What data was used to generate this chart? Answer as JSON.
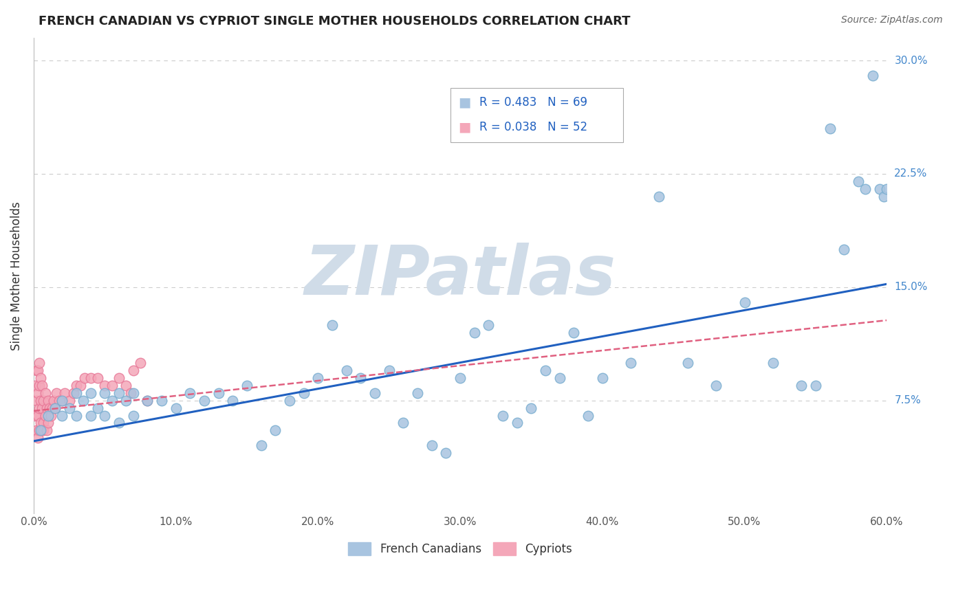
{
  "title": "FRENCH CANADIAN VS CYPRIOT SINGLE MOTHER HOUSEHOLDS CORRELATION CHART",
  "source": "Source: ZipAtlas.com",
  "xlabel": "",
  "ylabel": "Single Mother Households",
  "xlim": [
    0.0,
    0.6
  ],
  "ylim": [
    0.0,
    0.315
  ],
  "xtick_labels": [
    "0.0%",
    "10.0%",
    "20.0%",
    "30.0%",
    "40.0%",
    "50.0%",
    "60.0%"
  ],
  "xtick_vals": [
    0.0,
    0.1,
    0.2,
    0.3,
    0.4,
    0.5,
    0.6
  ],
  "ytick_labels": [
    "7.5%",
    "15.0%",
    "22.5%",
    "30.0%"
  ],
  "ytick_vals": [
    0.075,
    0.15,
    0.225,
    0.3
  ],
  "legend_R_blue": "R = 0.483",
  "legend_N_blue": "N = 69",
  "legend_R_pink": "R = 0.038",
  "legend_N_pink": "N = 52",
  "legend_label_blue": "French Canadians",
  "legend_label_pink": "Cypriots",
  "dot_color_blue": "#a8c4e0",
  "dot_color_pink": "#f4a7b9",
  "dot_edge_blue": "#7aaed0",
  "dot_edge_pink": "#e87a99",
  "line_color_blue": "#2060c0",
  "line_color_pink": "#e06080",
  "watermark": "ZIPatlas",
  "watermark_color": "#d0dce8",
  "blue_x": [
    0.005,
    0.01,
    0.015,
    0.02,
    0.02,
    0.025,
    0.03,
    0.03,
    0.035,
    0.04,
    0.04,
    0.045,
    0.05,
    0.05,
    0.055,
    0.06,
    0.06,
    0.065,
    0.07,
    0.07,
    0.08,
    0.09,
    0.1,
    0.11,
    0.12,
    0.13,
    0.14,
    0.15,
    0.16,
    0.17,
    0.18,
    0.19,
    0.2,
    0.21,
    0.22,
    0.23,
    0.24,
    0.25,
    0.26,
    0.27,
    0.28,
    0.29,
    0.3,
    0.31,
    0.32,
    0.33,
    0.34,
    0.35,
    0.36,
    0.37,
    0.38,
    0.39,
    0.4,
    0.42,
    0.44,
    0.46,
    0.48,
    0.5,
    0.52,
    0.54,
    0.55,
    0.56,
    0.57,
    0.58,
    0.585,
    0.59,
    0.595,
    0.598,
    0.6
  ],
  "blue_y": [
    0.055,
    0.065,
    0.07,
    0.065,
    0.075,
    0.07,
    0.065,
    0.08,
    0.075,
    0.065,
    0.08,
    0.07,
    0.065,
    0.08,
    0.075,
    0.06,
    0.08,
    0.075,
    0.065,
    0.08,
    0.075,
    0.075,
    0.07,
    0.08,
    0.075,
    0.08,
    0.075,
    0.085,
    0.045,
    0.055,
    0.075,
    0.08,
    0.09,
    0.125,
    0.095,
    0.09,
    0.08,
    0.095,
    0.06,
    0.08,
    0.045,
    0.04,
    0.09,
    0.12,
    0.125,
    0.065,
    0.06,
    0.07,
    0.095,
    0.09,
    0.12,
    0.065,
    0.09,
    0.1,
    0.21,
    0.1,
    0.085,
    0.14,
    0.1,
    0.085,
    0.085,
    0.255,
    0.175,
    0.22,
    0.215,
    0.29,
    0.215,
    0.21,
    0.215
  ],
  "pink_x": [
    0.001,
    0.001,
    0.002,
    0.002,
    0.002,
    0.003,
    0.003,
    0.003,
    0.003,
    0.004,
    0.004,
    0.004,
    0.004,
    0.005,
    0.005,
    0.005,
    0.006,
    0.006,
    0.006,
    0.007,
    0.007,
    0.007,
    0.008,
    0.008,
    0.009,
    0.009,
    0.01,
    0.01,
    0.011,
    0.012,
    0.013,
    0.014,
    0.015,
    0.016,
    0.018,
    0.02,
    0.022,
    0.025,
    0.028,
    0.03,
    0.033,
    0.036,
    0.04,
    0.045,
    0.05,
    0.055,
    0.06,
    0.065,
    0.068,
    0.07,
    0.075,
    0.08
  ],
  "pink_y": [
    0.085,
    0.065,
    0.075,
    0.055,
    0.095,
    0.05,
    0.065,
    0.08,
    0.095,
    0.055,
    0.07,
    0.085,
    0.1,
    0.06,
    0.075,
    0.09,
    0.055,
    0.07,
    0.085,
    0.06,
    0.075,
    0.055,
    0.065,
    0.08,
    0.055,
    0.07,
    0.06,
    0.075,
    0.07,
    0.065,
    0.07,
    0.075,
    0.07,
    0.08,
    0.075,
    0.075,
    0.08,
    0.075,
    0.08,
    0.085,
    0.085,
    0.09,
    0.09,
    0.09,
    0.085,
    0.085,
    0.09,
    0.085,
    0.08,
    0.095,
    0.1,
    0.075
  ],
  "blue_line_x": [
    0.0,
    0.6
  ],
  "blue_line_y": [
    0.048,
    0.152
  ],
  "pink_line_x": [
    0.0,
    0.6
  ],
  "pink_line_y": [
    0.068,
    0.128
  ]
}
